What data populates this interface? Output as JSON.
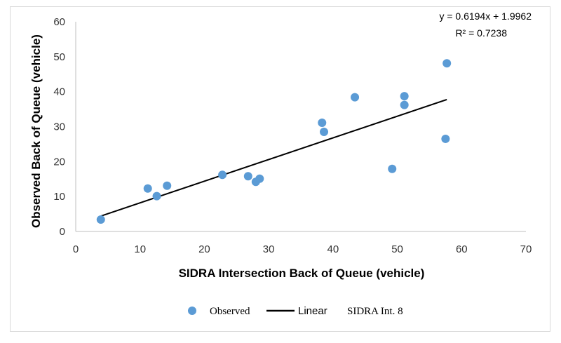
{
  "chart_data": {
    "type": "scatter",
    "xlabel": "SIDRA Intersection Back of Queue (vehicle)",
    "ylabel": "Observed Back of Queue (vehicle)",
    "xlim": [
      0,
      70
    ],
    "ylim": [
      0,
      60
    ],
    "x_ticks": [
      "0",
      "10",
      "20",
      "30",
      "40",
      "50",
      "60",
      "70"
    ],
    "y_ticks": [
      "0",
      "10",
      "20",
      "30",
      "40",
      "50",
      "60"
    ],
    "grid": false,
    "legend_position": "bottom",
    "series": [
      {
        "name": "Observed",
        "color": "#5b9bd5",
        "points": [
          {
            "x": 3.9,
            "y": 3.4
          },
          {
            "x": 11.2,
            "y": 12.3
          },
          {
            "x": 12.6,
            "y": 10.1
          },
          {
            "x": 14.2,
            "y": 13.1
          },
          {
            "x": 22.8,
            "y": 16.2
          },
          {
            "x": 26.8,
            "y": 15.8
          },
          {
            "x": 28.0,
            "y": 14.2
          },
          {
            "x": 28.6,
            "y": 15.1
          },
          {
            "x": 38.3,
            "y": 31.1
          },
          {
            "x": 38.6,
            "y": 28.5
          },
          {
            "x": 43.4,
            "y": 38.4
          },
          {
            "x": 49.2,
            "y": 17.9
          },
          {
            "x": 51.1,
            "y": 38.7
          },
          {
            "x": 51.1,
            "y": 36.2
          },
          {
            "x": 57.5,
            "y": 26.5
          },
          {
            "x": 57.7,
            "y": 48.1
          }
        ]
      }
    ],
    "trendline": {
      "label": "Linear",
      "color": "#000000",
      "slope": 0.6194,
      "intercept": 1.9962,
      "x_range": [
        3.9,
        57.7
      ],
      "equation_text": "y = 0.6194x + 1.9962",
      "r2_text": "R² = 0.7238"
    },
    "legend": {
      "observed_label": "Observed",
      "linear_label": "Linear",
      "extra_label": "SIDRA Int. 8"
    }
  }
}
